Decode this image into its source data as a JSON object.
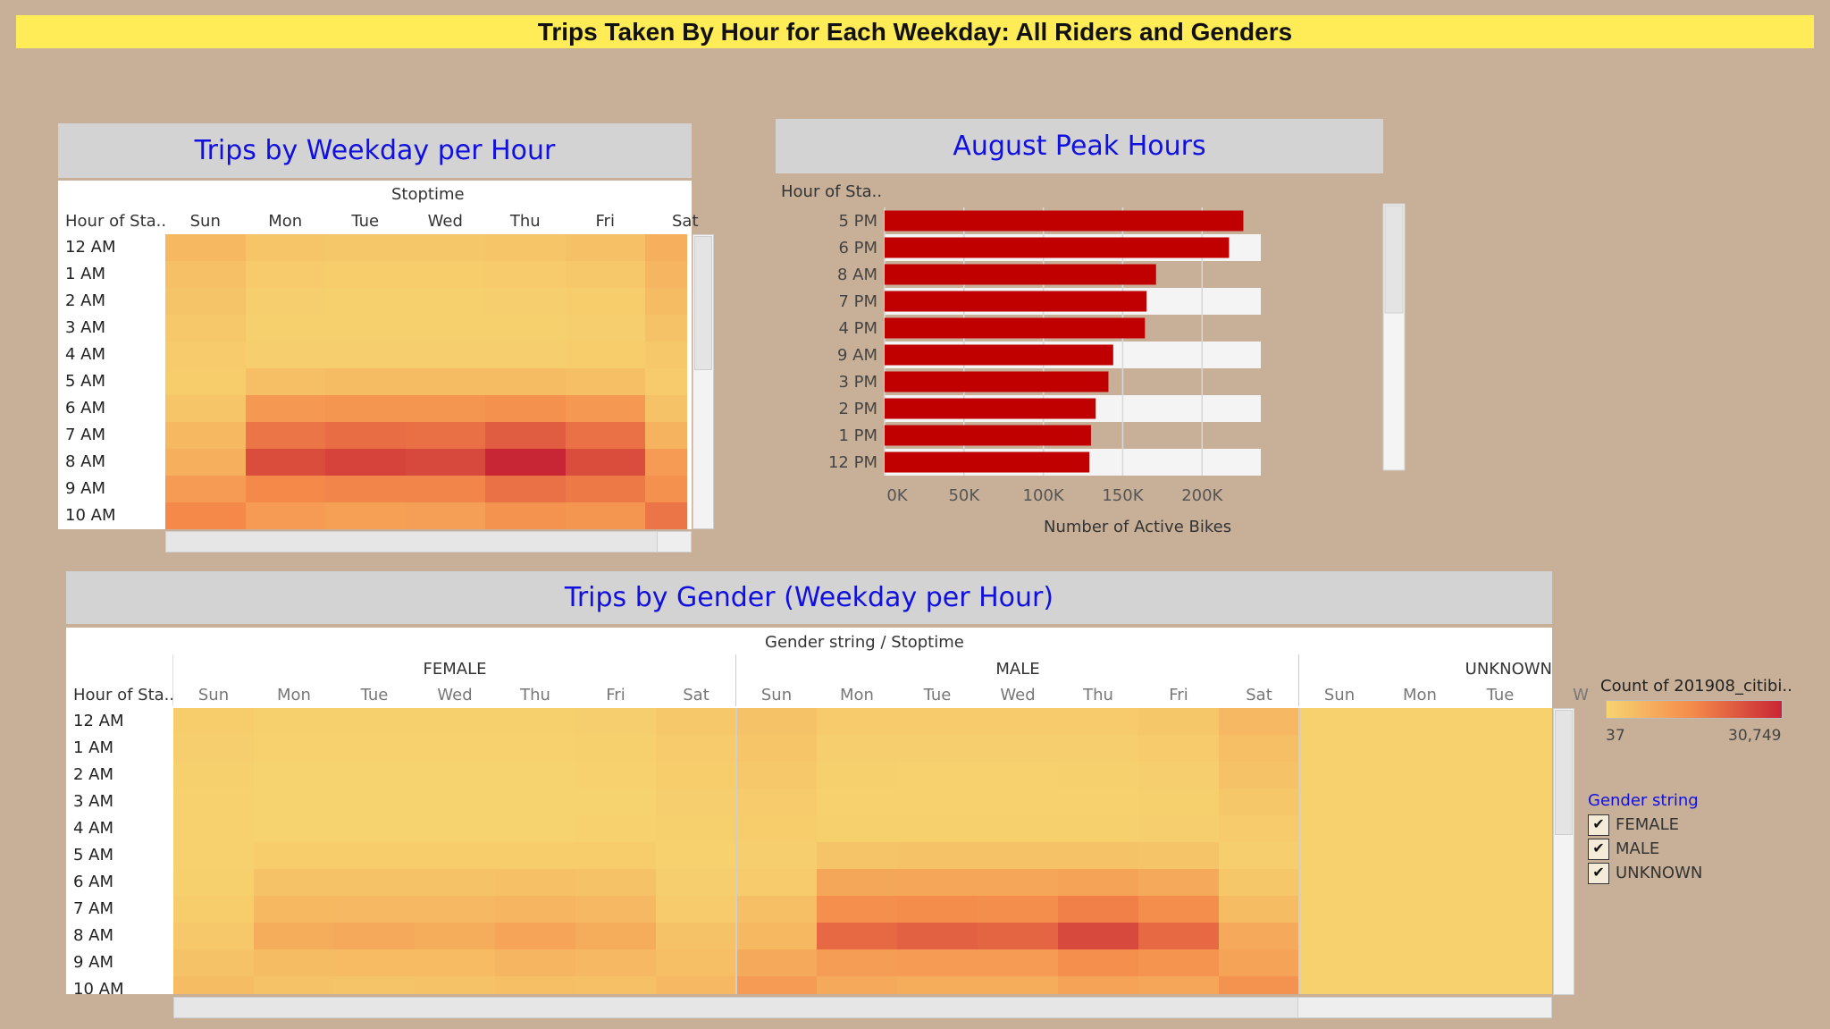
{
  "banner": {
    "title": "Trips Taken By Hour for Each Weekday: All Riders and Genders"
  },
  "panel1": {
    "title": "Trips by Weekday per Hour",
    "column_group_label": "Stoptime",
    "row_header": "Hour of Sta..",
    "days": [
      "Sun",
      "Mon",
      "Tue",
      "Wed",
      "Thu",
      "Fri",
      "Sat"
    ],
    "hours": [
      "12 AM",
      "1 AM",
      "2 AM",
      "3 AM",
      "4 AM",
      "5 AM",
      "6 AM",
      "7 AM",
      "8 AM",
      "9 AM",
      "10 AM"
    ],
    "levels": [
      [
        0.18,
        0.1,
        0.09,
        0.09,
        0.1,
        0.13,
        0.25
      ],
      [
        0.13,
        0.06,
        0.05,
        0.05,
        0.06,
        0.08,
        0.2
      ],
      [
        0.11,
        0.04,
        0.03,
        0.03,
        0.04,
        0.05,
        0.16
      ],
      [
        0.08,
        0.03,
        0.03,
        0.03,
        0.03,
        0.04,
        0.12
      ],
      [
        0.06,
        0.04,
        0.04,
        0.04,
        0.04,
        0.05,
        0.08
      ],
      [
        0.05,
        0.15,
        0.16,
        0.16,
        0.16,
        0.15,
        0.06
      ],
      [
        0.1,
        0.4,
        0.42,
        0.42,
        0.45,
        0.4,
        0.12
      ],
      [
        0.18,
        0.6,
        0.64,
        0.63,
        0.72,
        0.62,
        0.22
      ],
      [
        0.25,
        0.8,
        0.85,
        0.82,
        1.0,
        0.8,
        0.38
      ],
      [
        0.38,
        0.5,
        0.52,
        0.52,
        0.62,
        0.58,
        0.45
      ],
      [
        0.5,
        0.38,
        0.35,
        0.36,
        0.44,
        0.42,
        0.6
      ]
    ]
  },
  "panel2": {
    "title": "August Peak Hours",
    "chart_data": {
      "type": "bar",
      "orientation": "horizontal",
      "title": "August Peak Hours",
      "row_header": "Hour of Sta..",
      "categories": [
        "5 PM",
        "6 PM",
        "8 AM",
        "7 PM",
        "4 PM",
        "9 AM",
        "3 PM",
        "2 PM",
        "1 PM",
        "12 PM"
      ],
      "values": [
        226000,
        217000,
        171000,
        165000,
        164000,
        144000,
        141000,
        133000,
        130000,
        129000
      ],
      "xlabel": "Number of Active Bikes",
      "xlim": [
        0,
        237000
      ],
      "xticks": [
        0,
        50000,
        100000,
        150000,
        200000
      ],
      "xtick_labels": [
        "0K",
        "50K",
        "100K",
        "150K",
        "200K"
      ],
      "bar_color": "#c00000",
      "grid": true
    }
  },
  "panel3": {
    "title": "Trips by Gender (Weekday per Hour)",
    "column_group_label": "Gender string  /  Stoptime",
    "row_header": "Hour of Sta..",
    "genders": [
      "FEMALE",
      "MALE",
      "UNKNOWN"
    ],
    "days": [
      "Sun",
      "Mon",
      "Tue",
      "Wed",
      "Thu",
      "Fri",
      "Sat"
    ],
    "unknown_days": [
      "Sun",
      "Mon",
      "Tue",
      "W"
    ],
    "hours": [
      "12 AM",
      "1 AM",
      "2 AM",
      "3 AM",
      "4 AM",
      "5 AM",
      "6 AM",
      "7 AM",
      "8 AM",
      "9 AM",
      "10 AM"
    ],
    "female_levels": [
      [
        0.05,
        0.03,
        0.03,
        0.03,
        0.03,
        0.04,
        0.08
      ],
      [
        0.04,
        0.02,
        0.02,
        0.02,
        0.02,
        0.03,
        0.06
      ],
      [
        0.03,
        0.01,
        0.01,
        0.01,
        0.01,
        0.02,
        0.05
      ],
      [
        0.02,
        0.01,
        0.01,
        0.01,
        0.01,
        0.01,
        0.04
      ],
      [
        0.02,
        0.01,
        0.01,
        0.01,
        0.01,
        0.02,
        0.03
      ],
      [
        0.02,
        0.05,
        0.05,
        0.05,
        0.05,
        0.05,
        0.02
      ],
      [
        0.03,
        0.12,
        0.12,
        0.12,
        0.13,
        0.12,
        0.04
      ],
      [
        0.05,
        0.18,
        0.19,
        0.19,
        0.21,
        0.19,
        0.07
      ],
      [
        0.08,
        0.26,
        0.28,
        0.27,
        0.32,
        0.27,
        0.12
      ],
      [
        0.12,
        0.16,
        0.17,
        0.17,
        0.2,
        0.19,
        0.15
      ],
      [
        0.16,
        0.12,
        0.11,
        0.12,
        0.14,
        0.13,
        0.19
      ]
    ],
    "male_levels": [
      [
        0.12,
        0.07,
        0.06,
        0.06,
        0.07,
        0.09,
        0.19
      ],
      [
        0.1,
        0.04,
        0.04,
        0.04,
        0.04,
        0.06,
        0.15
      ],
      [
        0.08,
        0.03,
        0.02,
        0.02,
        0.03,
        0.04,
        0.12
      ],
      [
        0.06,
        0.02,
        0.02,
        0.02,
        0.02,
        0.03,
        0.09
      ],
      [
        0.05,
        0.03,
        0.03,
        0.03,
        0.03,
        0.04,
        0.06
      ],
      [
        0.04,
        0.11,
        0.12,
        0.12,
        0.12,
        0.11,
        0.04
      ],
      [
        0.07,
        0.3,
        0.31,
        0.31,
        0.33,
        0.29,
        0.09
      ],
      [
        0.14,
        0.46,
        0.48,
        0.47,
        0.55,
        0.47,
        0.16
      ],
      [
        0.18,
        0.66,
        0.7,
        0.68,
        0.82,
        0.66,
        0.28
      ],
      [
        0.28,
        0.37,
        0.38,
        0.38,
        0.46,
        0.43,
        0.33
      ],
      [
        0.38,
        0.28,
        0.26,
        0.27,
        0.33,
        0.31,
        0.44
      ]
    ],
    "unknown_levels": [
      [
        0.02,
        0.02,
        0.02,
        0.02
      ],
      [
        0.02,
        0.02,
        0.02,
        0.02
      ],
      [
        0.02,
        0.02,
        0.02,
        0.02
      ],
      [
        0.02,
        0.02,
        0.02,
        0.02
      ],
      [
        0.02,
        0.02,
        0.02,
        0.02
      ],
      [
        0.02,
        0.02,
        0.02,
        0.02
      ],
      [
        0.02,
        0.02,
        0.02,
        0.02
      ],
      [
        0.02,
        0.02,
        0.02,
        0.02
      ],
      [
        0.02,
        0.02,
        0.02,
        0.02
      ],
      [
        0.02,
        0.02,
        0.02,
        0.02
      ],
      [
        0.02,
        0.02,
        0.02,
        0.02
      ]
    ]
  },
  "legend": {
    "title": "Count of 201908_citibi..",
    "min_label": "37",
    "max_label": "30,749",
    "gradient_low": "#f7d470",
    "gradient_mid": "#f4894a",
    "gradient_high": "#c82535",
    "gender_filter_title": "Gender string",
    "gender_options": [
      {
        "label": "FEMALE",
        "checked": true
      },
      {
        "label": "MALE",
        "checked": true
      },
      {
        "label": "UNKNOWN",
        "checked": true
      }
    ]
  }
}
